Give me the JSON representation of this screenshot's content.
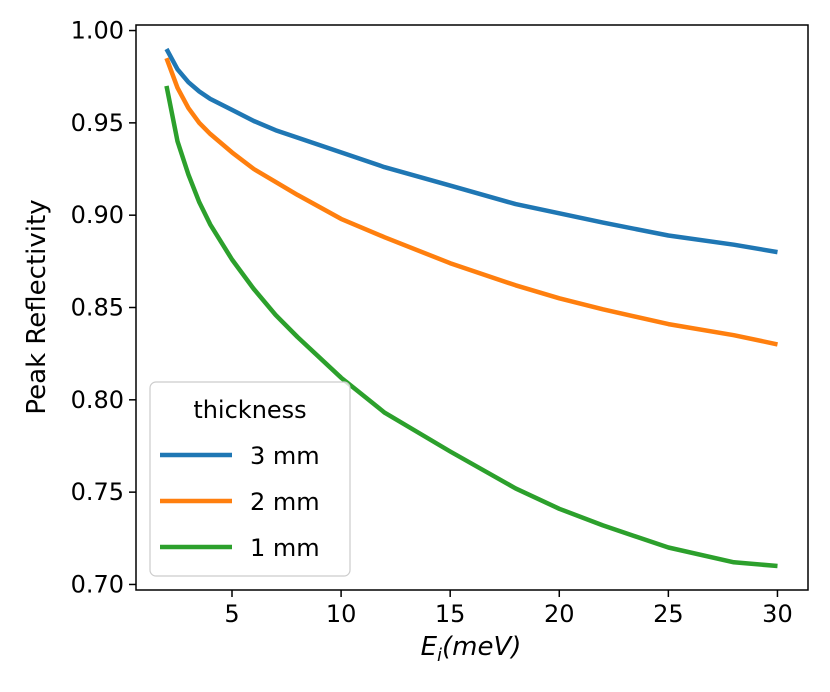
{
  "chart_data": {
    "type": "line",
    "title": "",
    "xlabel_main": "E",
    "xlabel_sub": "i",
    "xlabel_rest": "(meV)",
    "ylabel": "Peak Reflectivity",
    "xlim": [
      0.6,
      31.4
    ],
    "ylim": [
      0.697,
      1.003
    ],
    "xticks": [
      5,
      10,
      15,
      20,
      25,
      30
    ],
    "yticks": [
      0.7,
      0.75,
      0.8,
      0.85,
      0.9,
      0.95,
      1.0
    ],
    "ytick_labels": [
      "0.70",
      "0.75",
      "0.80",
      "0.85",
      "0.90",
      "0.95",
      "1.00"
    ],
    "legend": {
      "title": "thickness",
      "position": "lower-left"
    },
    "x": [
      2,
      2.5,
      3,
      3.5,
      4,
      5,
      6,
      7,
      8,
      10,
      12,
      15,
      18,
      20,
      22,
      25,
      28,
      30
    ],
    "series": [
      {
        "name": "3 mm",
        "color": "#1f77b4",
        "values": [
          0.99,
          0.979,
          0.972,
          0.967,
          0.963,
          0.957,
          0.951,
          0.946,
          0.942,
          0.934,
          0.926,
          0.916,
          0.906,
          0.901,
          0.896,
          0.889,
          0.884,
          0.88
        ]
      },
      {
        "name": "2 mm",
        "color": "#ff7f0e",
        "values": [
          0.985,
          0.969,
          0.958,
          0.95,
          0.944,
          0.934,
          0.925,
          0.918,
          0.911,
          0.898,
          0.888,
          0.874,
          0.862,
          0.855,
          0.849,
          0.841,
          0.835,
          0.83
        ]
      },
      {
        "name": "1 mm",
        "color": "#2ca02c",
        "values": [
          0.97,
          0.94,
          0.922,
          0.907,
          0.895,
          0.876,
          0.86,
          0.846,
          0.834,
          0.812,
          0.793,
          0.772,
          0.752,
          0.741,
          0.732,
          0.72,
          0.712,
          0.71
        ]
      }
    ]
  }
}
